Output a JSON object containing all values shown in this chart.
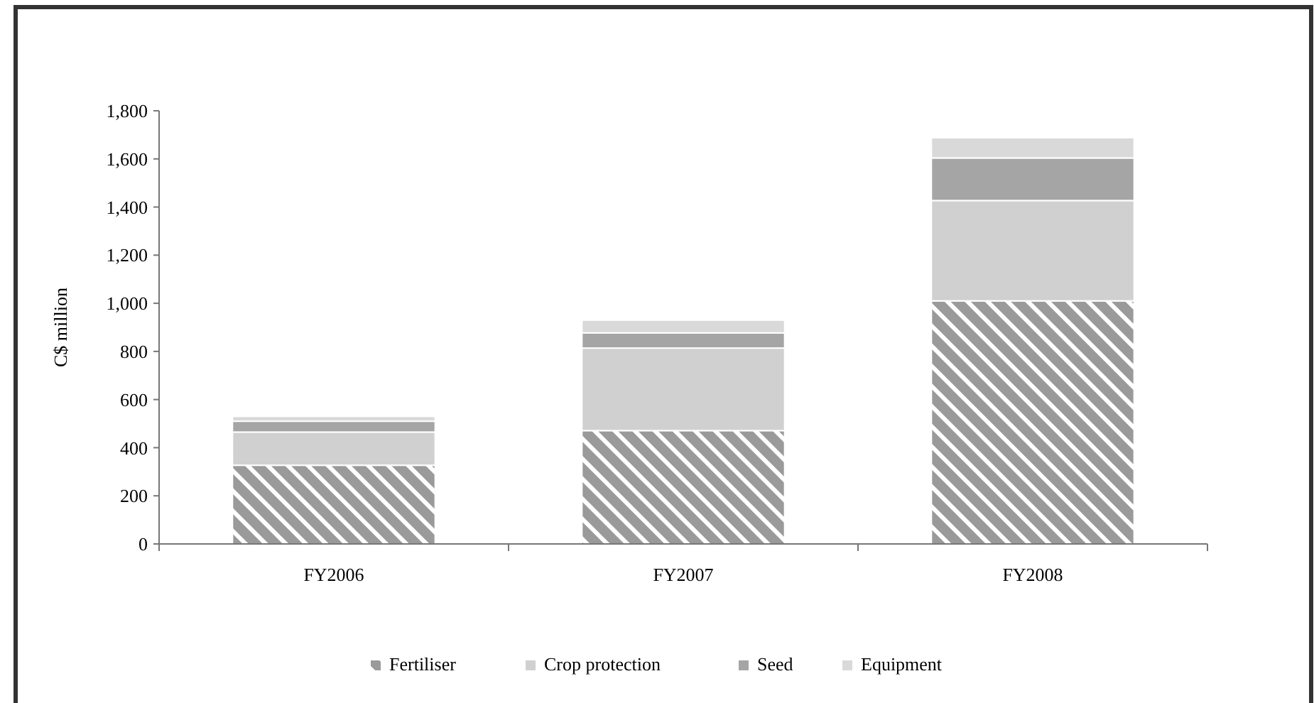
{
  "chart_data": {
    "type": "bar",
    "stacked": true,
    "ylabel": "C$ million",
    "categories": [
      "FY2006",
      "FY2007",
      "FY2008"
    ],
    "series": [
      {
        "name": "Fertiliser",
        "color": "#9a9a9a",
        "values": [
          327,
          471,
          1010
        ]
      },
      {
        "name": "Crop protection",
        "color": "#d0d0d0",
        "values": [
          138,
          343,
          417
        ]
      },
      {
        "name": "Seed",
        "color": "#a5a5a6",
        "values": [
          45,
          63,
          177
        ]
      },
      {
        "name": "Equipment",
        "color": "#d9d9d9",
        "values": [
          20,
          53,
          84
        ]
      }
    ],
    "ylim": [
      0,
      1800
    ],
    "yticks": [
      0,
      200,
      400,
      600,
      800,
      {
        "value": 1000,
        "label": "1,000"
      },
      {
        "value": 1200,
        "label": "1,200"
      },
      {
        "value": 1400,
        "label": "1,400"
      },
      {
        "value": 1600,
        "label": "1,600"
      },
      {
        "value": 1800,
        "label": "1,800"
      }
    ],
    "grid": false,
    "legend": "bottom"
  }
}
